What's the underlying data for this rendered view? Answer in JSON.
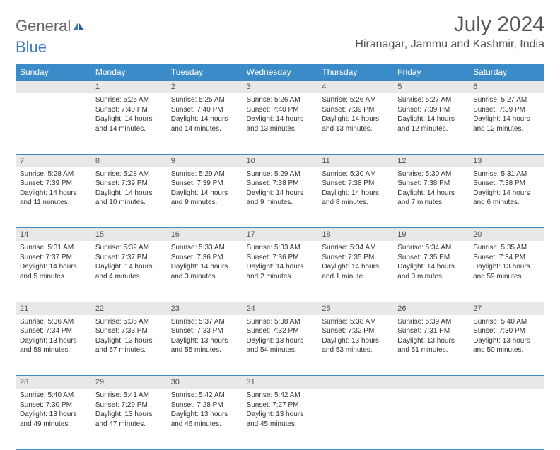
{
  "logo": {
    "text1": "General",
    "text2": "Blue",
    "icon_color": "#3c7bbf"
  },
  "title": "July 2024",
  "location": "Hiranagar, Jammu and Kashmir, India",
  "colors": {
    "header_bg": "#3b8bc8",
    "header_text": "#ffffff",
    "daynum_bg": "#e8e8e8",
    "border": "#3b8bc8",
    "text": "#333333"
  },
  "weekdays": [
    "Sunday",
    "Monday",
    "Tuesday",
    "Wednesday",
    "Thursday",
    "Friday",
    "Saturday"
  ],
  "weeks": [
    [
      null,
      {
        "n": "1",
        "sr": "5:25 AM",
        "ss": "7:40 PM",
        "dl": "14 hours and 14 minutes."
      },
      {
        "n": "2",
        "sr": "5:25 AM",
        "ss": "7:40 PM",
        "dl": "14 hours and 14 minutes."
      },
      {
        "n": "3",
        "sr": "5:26 AM",
        "ss": "7:40 PM",
        "dl": "14 hours and 13 minutes."
      },
      {
        "n": "4",
        "sr": "5:26 AM",
        "ss": "7:39 PM",
        "dl": "14 hours and 13 minutes."
      },
      {
        "n": "5",
        "sr": "5:27 AM",
        "ss": "7:39 PM",
        "dl": "14 hours and 12 minutes."
      },
      {
        "n": "6",
        "sr": "5:27 AM",
        "ss": "7:39 PM",
        "dl": "14 hours and 12 minutes."
      }
    ],
    [
      {
        "n": "7",
        "sr": "5:28 AM",
        "ss": "7:39 PM",
        "dl": "14 hours and 11 minutes."
      },
      {
        "n": "8",
        "sr": "5:28 AM",
        "ss": "7:39 PM",
        "dl": "14 hours and 10 minutes."
      },
      {
        "n": "9",
        "sr": "5:29 AM",
        "ss": "7:39 PM",
        "dl": "14 hours and 9 minutes."
      },
      {
        "n": "10",
        "sr": "5:29 AM",
        "ss": "7:38 PM",
        "dl": "14 hours and 9 minutes."
      },
      {
        "n": "11",
        "sr": "5:30 AM",
        "ss": "7:38 PM",
        "dl": "14 hours and 8 minutes."
      },
      {
        "n": "12",
        "sr": "5:30 AM",
        "ss": "7:38 PM",
        "dl": "14 hours and 7 minutes."
      },
      {
        "n": "13",
        "sr": "5:31 AM",
        "ss": "7:38 PM",
        "dl": "14 hours and 6 minutes."
      }
    ],
    [
      {
        "n": "14",
        "sr": "5:31 AM",
        "ss": "7:37 PM",
        "dl": "14 hours and 5 minutes."
      },
      {
        "n": "15",
        "sr": "5:32 AM",
        "ss": "7:37 PM",
        "dl": "14 hours and 4 minutes."
      },
      {
        "n": "16",
        "sr": "5:33 AM",
        "ss": "7:36 PM",
        "dl": "14 hours and 3 minutes."
      },
      {
        "n": "17",
        "sr": "5:33 AM",
        "ss": "7:36 PM",
        "dl": "14 hours and 2 minutes."
      },
      {
        "n": "18",
        "sr": "5:34 AM",
        "ss": "7:35 PM",
        "dl": "14 hours and 1 minute."
      },
      {
        "n": "19",
        "sr": "5:34 AM",
        "ss": "7:35 PM",
        "dl": "14 hours and 0 minutes."
      },
      {
        "n": "20",
        "sr": "5:35 AM",
        "ss": "7:34 PM",
        "dl": "13 hours and 59 minutes."
      }
    ],
    [
      {
        "n": "21",
        "sr": "5:36 AM",
        "ss": "7:34 PM",
        "dl": "13 hours and 58 minutes."
      },
      {
        "n": "22",
        "sr": "5:36 AM",
        "ss": "7:33 PM",
        "dl": "13 hours and 57 minutes."
      },
      {
        "n": "23",
        "sr": "5:37 AM",
        "ss": "7:33 PM",
        "dl": "13 hours and 55 minutes."
      },
      {
        "n": "24",
        "sr": "5:38 AM",
        "ss": "7:32 PM",
        "dl": "13 hours and 54 minutes."
      },
      {
        "n": "25",
        "sr": "5:38 AM",
        "ss": "7:32 PM",
        "dl": "13 hours and 53 minutes."
      },
      {
        "n": "26",
        "sr": "5:39 AM",
        "ss": "7:31 PM",
        "dl": "13 hours and 51 minutes."
      },
      {
        "n": "27",
        "sr": "5:40 AM",
        "ss": "7:30 PM",
        "dl": "13 hours and 50 minutes."
      }
    ],
    [
      {
        "n": "28",
        "sr": "5:40 AM",
        "ss": "7:30 PM",
        "dl": "13 hours and 49 minutes."
      },
      {
        "n": "29",
        "sr": "5:41 AM",
        "ss": "7:29 PM",
        "dl": "13 hours and 47 minutes."
      },
      {
        "n": "30",
        "sr": "5:42 AM",
        "ss": "7:28 PM",
        "dl": "13 hours and 46 minutes."
      },
      {
        "n": "31",
        "sr": "5:42 AM",
        "ss": "7:27 PM",
        "dl": "13 hours and 45 minutes."
      },
      null,
      null,
      null
    ]
  ],
  "labels": {
    "sunrise": "Sunrise:",
    "sunset": "Sunset:",
    "daylight": "Daylight:"
  }
}
